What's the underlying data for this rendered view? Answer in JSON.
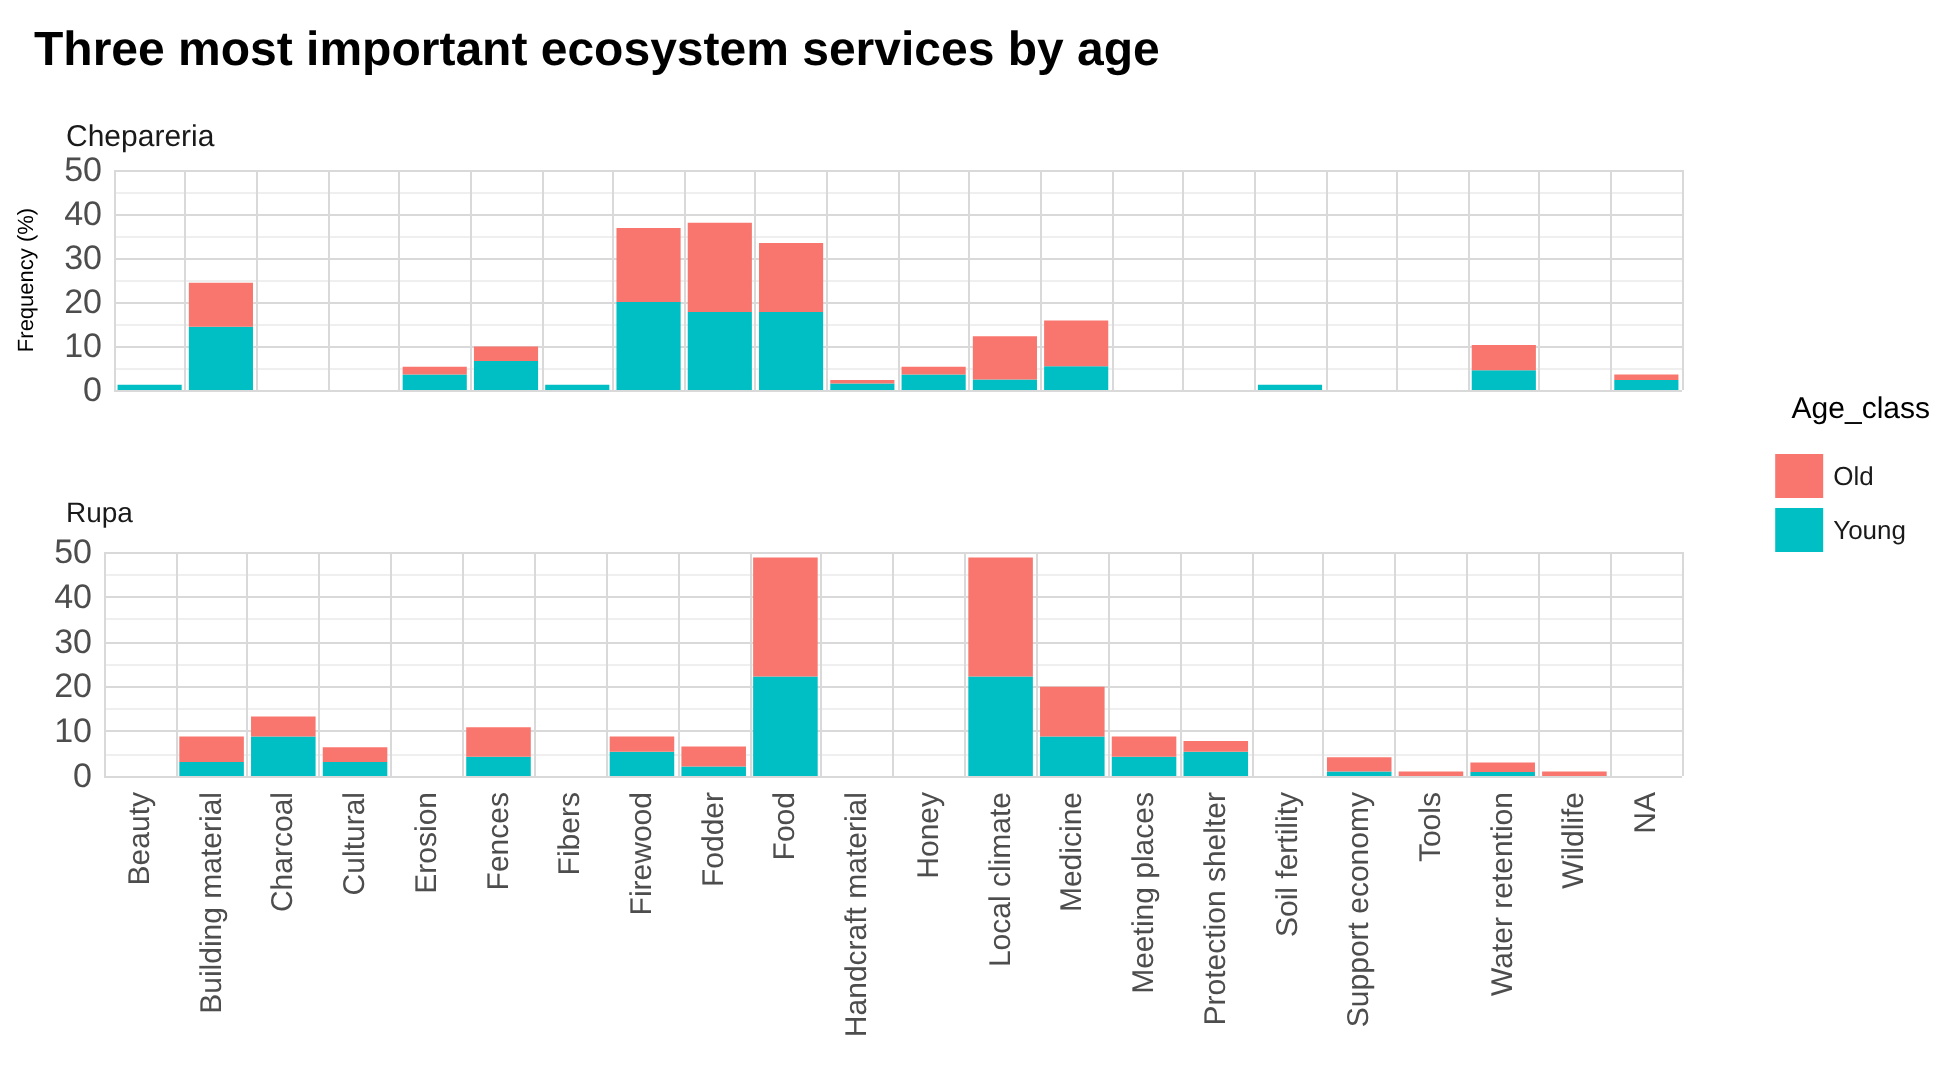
{
  "chart_data": [
    {
      "type": "bar",
      "title": "Three most important ecosystem services by age",
      "subtitle": "Chepareria",
      "ylabel": "Frequency (%)",
      "legend_title": "Age_class",
      "legend": "right",
      "stacked": true,
      "grid": true,
      "tick_labels": "y",
      "categories": [
        null,
        null,
        null,
        null,
        null,
        null,
        null,
        null,
        null,
        null,
        null,
        null,
        null,
        null,
        null,
        null,
        null,
        null,
        null,
        null,
        null,
        null
      ],
      "ylim": [
        0,
        50
      ],
      "yticks": [
        0,
        10,
        20,
        30,
        40,
        50
      ],
      "series": [
        {
          "name": "Young",
          "color": "#00bfc4",
          "values": [
            1.2,
            14.4,
            0,
            0,
            3.5,
            6.6,
            1.2,
            20,
            17.7,
            17.7,
            1.5,
            3.5,
            2.4,
            5.4,
            0,
            0,
            1.2,
            0,
            0,
            4.5,
            0,
            2.3
          ]
        },
        {
          "name": "Old",
          "color": "#f8766d",
          "values": [
            0,
            10,
            0,
            0,
            1.8,
            3.3,
            0,
            16.8,
            20.3,
            15.7,
            0.8,
            1.8,
            9.8,
            10.4,
            0,
            0,
            0,
            0,
            0,
            5.7,
            0,
            1.2
          ]
        }
      ]
    },
    {
      "type": "bar",
      "title": "Rupa",
      "stacked": true,
      "grid": true,
      "categories": [
        "Beauty",
        "Building material",
        "Charcoal",
        "Cultural",
        "Erosion",
        "Fences",
        "Fibers",
        "Firewood",
        "Fodder",
        "Food",
        "Handcraft material",
        "Honey",
        "Local climate",
        "Medicine",
        "Meeting places",
        "Protection shelter",
        "Soil fertility",
        "Support economy",
        "Tools",
        "Water retention",
        "Wildlife",
        "NA"
      ],
      "ylim": [
        0,
        50
      ],
      "yticks": [
        0,
        10,
        20,
        30,
        40,
        50
      ],
      "series": [
        {
          "color": "#00bfc4",
          "values": [
            0,
            3.1,
            8.8,
            3.1,
            0,
            4.3,
            0,
            5.4,
            2.1,
            22.2,
            0,
            0,
            22.2,
            8.8,
            4.3,
            5.4,
            0,
            1.0,
            0,
            0.9,
            0,
            0
          ]
        },
        {
          "color": "#f8766d",
          "values": [
            0,
            5.7,
            4.5,
            3.3,
            0,
            6.6,
            0,
            3.4,
            4.5,
            26.6,
            0,
            0,
            26.6,
            11.1,
            4.5,
            2.4,
            0,
            3.2,
            1.0,
            2.1,
            1.0,
            0
          ]
        }
      ]
    }
  ]
}
